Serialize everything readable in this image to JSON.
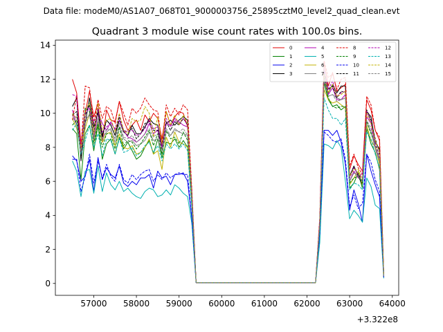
{
  "figure": {
    "suptitle": "Data file: modeM0/AS1A07_068T01_9000003756_25895cztM0_level2_quad_clean.evt"
  },
  "chart_data": {
    "type": "line",
    "title": "Quadrant 3 module wise count rates with 100.0s bins.",
    "xlabel": "",
    "ylabel": "",
    "x_offset_label": "+3.322e8",
    "xlim": [
      56100,
      64150
    ],
    "ylim": [
      -0.7,
      14.3
    ],
    "xticks": [
      57000,
      58000,
      59000,
      60000,
      61000,
      62000,
      63000,
      64000
    ],
    "xtick_labels": [
      "57000",
      "58000",
      "59000",
      "60000",
      "61000",
      "62000",
      "63000",
      "64000"
    ],
    "yticks": [
      0,
      2,
      4,
      6,
      8,
      10,
      12,
      14
    ],
    "ytick_labels": [
      "0",
      "2",
      "4",
      "6",
      "8",
      "10",
      "12",
      "14"
    ],
    "grid": false,
    "legend": {
      "position": "top-right",
      "columns": 4
    },
    "x": [
      56500,
      56600,
      56700,
      56800,
      56900,
      57000,
      57100,
      57200,
      57300,
      57400,
      57500,
      57600,
      57700,
      57800,
      57900,
      58000,
      58100,
      58200,
      58300,
      58400,
      58500,
      58600,
      58700,
      58800,
      58900,
      59000,
      59100,
      59200,
      59300,
      59400,
      62200,
      62300,
      62400,
      62500,
      62600,
      62700,
      62800,
      62900,
      63000,
      63100,
      63200,
      63300,
      63400,
      63500,
      63600,
      63700,
      63800
    ],
    "series": [
      {
        "name": "0",
        "color": "#e00000",
        "dash": "solid",
        "values": [
          12.0,
          11.2,
          8.2,
          10.0,
          11.3,
          9.8,
          10.6,
          8.3,
          10.2,
          9.6,
          9.5,
          10.7,
          9.6,
          9.0,
          9.3,
          9.6,
          9.0,
          9.9,
          9.5,
          10.0,
          9.7,
          8.5,
          10.1,
          9.3,
          9.8,
          10.1,
          10.0,
          9.2,
          5.2,
          0.05,
          0.05,
          3.8,
          13.0,
          11.6,
          12.4,
          11.3,
          11.5,
          11.7,
          6.7,
          7.5,
          7.0,
          6.6,
          10.8,
          10.2,
          9.0,
          8.4,
          0.5
        ]
      },
      {
        "name": "1",
        "color": "#008000",
        "dash": "solid",
        "values": [
          9.1,
          8.8,
          6.1,
          8.8,
          9.3,
          7.8,
          9.3,
          7.3,
          8.2,
          8.5,
          7.6,
          8.6,
          7.9,
          8.3,
          7.8,
          7.3,
          7.5,
          8.0,
          8.4,
          7.6,
          8.5,
          7.4,
          8.3,
          8.2,
          8.5,
          8.0,
          8.4,
          8.0,
          4.5,
          0.05,
          0.05,
          3.3,
          11.8,
          10.8,
          10.4,
          10.5,
          10.2,
          10.4,
          5.6,
          5.9,
          6.5,
          5.6,
          9.1,
          8.2,
          7.7,
          6.7,
          0.4
        ]
      },
      {
        "name": "2",
        "color": "#0000ee",
        "dash": "solid",
        "values": [
          7.5,
          7.2,
          6.0,
          6.3,
          7.3,
          5.4,
          7.4,
          6.1,
          6.8,
          6.4,
          6.2,
          6.9,
          5.9,
          5.7,
          6.0,
          5.8,
          6.2,
          6.2,
          6.4,
          5.6,
          6.6,
          6.2,
          6.3,
          5.8,
          6.4,
          6.4,
          6.5,
          6.0,
          3.8,
          0.05,
          0.05,
          2.8,
          9.0,
          9.0,
          8.7,
          9.0,
          8.3,
          7.0,
          4.3,
          5.5,
          4.7,
          3.6,
          7.6,
          6.6,
          5.8,
          5.1,
          0.35
        ]
      },
      {
        "name": "3",
        "color": "#000000",
        "dash": "solid",
        "values": [
          10.4,
          10.9,
          7.2,
          9.4,
          10.9,
          9.2,
          10.0,
          8.7,
          9.6,
          9.3,
          8.7,
          9.6,
          8.9,
          8.7,
          9.3,
          8.8,
          8.8,
          9.2,
          9.7,
          9.4,
          9.3,
          8.1,
          9.4,
          9.6,
          9.3,
          9.6,
          9.8,
          9.6,
          5.3,
          0.05,
          0.05,
          3.5,
          12.3,
          11.2,
          11.7,
          11.2,
          11.6,
          11.6,
          6.3,
          6.9,
          6.3,
          5.8,
          10.1,
          9.8,
          8.3,
          7.9,
          0.45
        ]
      },
      {
        "name": "4",
        "color": "#b000b0",
        "dash": "solid",
        "values": [
          10.2,
          9.3,
          8.2,
          10.3,
          10.3,
          8.6,
          10.1,
          9.4,
          9.0,
          9.5,
          9.0,
          9.6,
          9.0,
          8.6,
          8.5,
          8.3,
          8.5,
          8.8,
          9.4,
          8.8,
          9.0,
          8.0,
          9.4,
          9.3,
          9.7,
          9.5,
          9.3,
          9.2,
          5.0,
          0.05,
          0.05,
          3.6,
          12.2,
          11.1,
          11.5,
          10.8,
          10.8,
          11.1,
          6.0,
          6.6,
          6.2,
          6.5,
          9.8,
          9.4,
          8.0,
          7.3,
          0.45
        ]
      },
      {
        "name": "5",
        "color": "#00b0b0",
        "dash": "solid",
        "values": [
          7.2,
          6.6,
          5.1,
          6.6,
          6.7,
          5.3,
          6.9,
          5.4,
          6.5,
          5.8,
          5.5,
          6.0,
          5.4,
          5.6,
          5.3,
          5.1,
          5.0,
          5.4,
          5.6,
          5.5,
          5.1,
          5.2,
          5.5,
          5.2,
          5.8,
          5.6,
          5.3,
          5.1,
          3.5,
          0.05,
          0.05,
          2.4,
          8.2,
          8.1,
          7.9,
          8.4,
          8.0,
          6.0,
          3.8,
          4.3,
          4.0,
          3.6,
          6.2,
          5.7,
          4.6,
          4.4,
          0.3
        ]
      },
      {
        "name": "6",
        "color": "#c0b000",
        "dash": "solid",
        "values": [
          9.7,
          9.1,
          7.8,
          9.1,
          10.0,
          8.3,
          9.5,
          8.3,
          8.8,
          8.9,
          8.1,
          8.8,
          8.0,
          7.9,
          8.1,
          7.6,
          7.7,
          8.0,
          8.5,
          7.6,
          7.8,
          6.7,
          8.6,
          8.0,
          8.9,
          8.3,
          8.2,
          8.0,
          4.7,
          0.05,
          0.05,
          3.4,
          11.4,
          10.8,
          10.6,
          10.7,
          10.5,
          10.3,
          5.8,
          6.2,
          6.6,
          5.8,
          9.3,
          8.4,
          8.0,
          7.0,
          0.4
        ]
      },
      {
        "name": "7",
        "color": "#808080",
        "dash": "solid",
        "values": [
          9.9,
          9.3,
          7.6,
          9.6,
          9.9,
          8.4,
          9.7,
          8.5,
          8.9,
          9.1,
          8.3,
          9.2,
          8.5,
          8.3,
          8.4,
          8.1,
          8.2,
          8.4,
          8.9,
          8.4,
          8.5,
          7.6,
          8.9,
          8.7,
          9.1,
          8.9,
          8.8,
          8.7,
          4.8,
          0.05,
          0.05,
          3.5,
          11.9,
          11.0,
          11.1,
          10.9,
          10.8,
          10.9,
          6.0,
          6.5,
          6.3,
          6.0,
          9.5,
          8.9,
          7.9,
          7.2,
          0.4
        ]
      },
      {
        "name": "8",
        "color": "#e00000",
        "dash": "dashed",
        "values": [
          9.6,
          11.1,
          8.0,
          11.6,
          11.5,
          9.4,
          10.8,
          9.7,
          10.4,
          10.2,
          9.4,
          10.7,
          10.0,
          9.3,
          10.3,
          10.0,
          10.3,
          10.9,
          10.5,
          10.2,
          10.1,
          8.2,
          10.5,
          9.8,
          10.3,
          9.9,
          10.5,
          10.2,
          5.5,
          0.05,
          0.05,
          3.9,
          13.1,
          12.1,
          12.3,
          11.4,
          12.0,
          12.1,
          6.9,
          7.6,
          6.8,
          6.4,
          11.0,
          10.5,
          9.0,
          8.6,
          0.5
        ]
      },
      {
        "name": "9",
        "color": "#008000",
        "dash": "dashed",
        "values": [
          9.3,
          9.6,
          7.5,
          10.3,
          10.1,
          8.2,
          9.4,
          8.0,
          8.8,
          8.8,
          7.9,
          9.2,
          8.1,
          8.4,
          8.3,
          7.9,
          8.2,
          8.6,
          9.0,
          8.1,
          8.8,
          7.6,
          9.0,
          8.5,
          8.6,
          8.2,
          8.9,
          8.4,
          4.6,
          0.05,
          0.05,
          3.4,
          12.1,
          10.9,
          10.4,
          10.3,
          10.4,
          10.4,
          5.9,
          6.2,
          6.3,
          5.9,
          9.5,
          8.8,
          8.2,
          7.3,
          0.4
        ]
      },
      {
        "name": "10",
        "color": "#0000ee",
        "dash": "dashed",
        "values": [
          7.3,
          7.3,
          5.4,
          6.3,
          7.6,
          5.9,
          7.2,
          6.2,
          7.0,
          6.3,
          6.0,
          7.0,
          6.1,
          5.9,
          6.4,
          6.1,
          6.4,
          6.6,
          6.7,
          6.0,
          6.4,
          6.1,
          6.5,
          6.2,
          6.4,
          6.5,
          6.4,
          6.4,
          3.8,
          0.05,
          0.05,
          3.0,
          8.9,
          8.7,
          8.4,
          8.3,
          8.5,
          7.3,
          4.5,
          5.2,
          4.4,
          4.7,
          7.6,
          7.1,
          6.1,
          5.4,
          0.35
        ]
      },
      {
        "name": "11",
        "color": "#000000",
        "dash": "dashed",
        "values": [
          9.9,
          10.1,
          7.5,
          9.9,
          10.5,
          8.9,
          10.2,
          8.6,
          9.6,
          9.3,
          8.7,
          9.8,
          9.0,
          8.9,
          9.1,
          8.5,
          8.8,
          9.4,
          9.5,
          9.0,
          9.0,
          7.9,
          9.5,
          9.0,
          9.5,
          9.3,
          9.7,
          9.3,
          5.0,
          0.05,
          0.05,
          3.6,
          12.5,
          11.4,
          11.6,
          10.9,
          11.3,
          11.2,
          6.2,
          6.8,
          6.4,
          6.0,
          10.2,
          9.6,
          8.5,
          7.7,
          0.45
        ]
      },
      {
        "name": "12",
        "color": "#b000b0",
        "dash": "dashed",
        "values": [
          11.1,
          11.0,
          7.6,
          10.0,
          10.3,
          9.4,
          10.3,
          8.9,
          9.2,
          9.4,
          9.1,
          9.9,
          9.0,
          8.9,
          9.0,
          8.7,
          8.8,
          9.1,
          9.6,
          9.1,
          9.2,
          8.0,
          9.7,
          9.2,
          9.6,
          9.4,
          9.7,
          9.3,
          5.1,
          0.05,
          0.05,
          3.7,
          12.6,
          11.4,
          11.9,
          11.0,
          11.2,
          11.3,
          6.2,
          6.8,
          6.4,
          6.2,
          10.1,
          9.5,
          8.3,
          7.5,
          0.45
        ]
      },
      {
        "name": "13",
        "color": "#00b0b0",
        "dash": "dashed",
        "values": [
          9.0,
          9.4,
          7.6,
          8.4,
          9.3,
          8.0,
          8.8,
          7.5,
          8.5,
          8.4,
          7.6,
          8.5,
          7.7,
          7.8,
          8.0,
          7.5,
          7.7,
          8.1,
          8.3,
          7.7,
          8.1,
          7.2,
          8.2,
          7.9,
          8.2,
          7.9,
          8.2,
          7.8,
          4.4,
          0.05,
          0.05,
          3.2,
          10.9,
          10.2,
          9.7,
          9.7,
          9.3,
          9.7,
          5.5,
          5.9,
          5.8,
          5.5,
          8.9,
          8.5,
          7.6,
          6.8,
          0.4
        ]
      },
      {
        "name": "14",
        "color": "#c0b000",
        "dash": "dashed",
        "values": [
          10.0,
          9.7,
          7.8,
          10.2,
          10.6,
          8.8,
          10.6,
          9.0,
          9.6,
          9.7,
          8.9,
          10.0,
          9.0,
          8.8,
          9.7,
          9.5,
          9.6,
          10.4,
          10.0,
          8.6,
          9.8,
          8.2,
          10.1,
          9.3,
          9.9,
          9.3,
          9.9,
          9.4,
          5.1,
          0.05,
          0.05,
          3.6,
          12.3,
          11.2,
          11.7,
          11.0,
          11.1,
          11.3,
          6.3,
          6.7,
          6.7,
          6.1,
          10.0,
          9.4,
          8.4,
          7.7,
          0.45
        ]
      },
      {
        "name": "15",
        "color": "#808080",
        "dash": "dashed",
        "values": [
          9.6,
          9.8,
          7.7,
          9.4,
          10.0,
          8.6,
          9.5,
          8.4,
          9.1,
          9.0,
          8.5,
          9.4,
          8.6,
          8.5,
          8.7,
          8.3,
          8.5,
          8.8,
          9.1,
          8.6,
          8.8,
          7.8,
          9.1,
          8.7,
          9.0,
          8.9,
          9.1,
          8.7,
          4.9,
          0.05,
          0.05,
          3.5,
          12.0,
          11.0,
          11.1,
          10.7,
          10.8,
          10.9,
          6.0,
          6.5,
          6.3,
          6.0,
          9.6,
          9.1,
          8.1,
          7.3,
          0.4
        ]
      }
    ]
  }
}
